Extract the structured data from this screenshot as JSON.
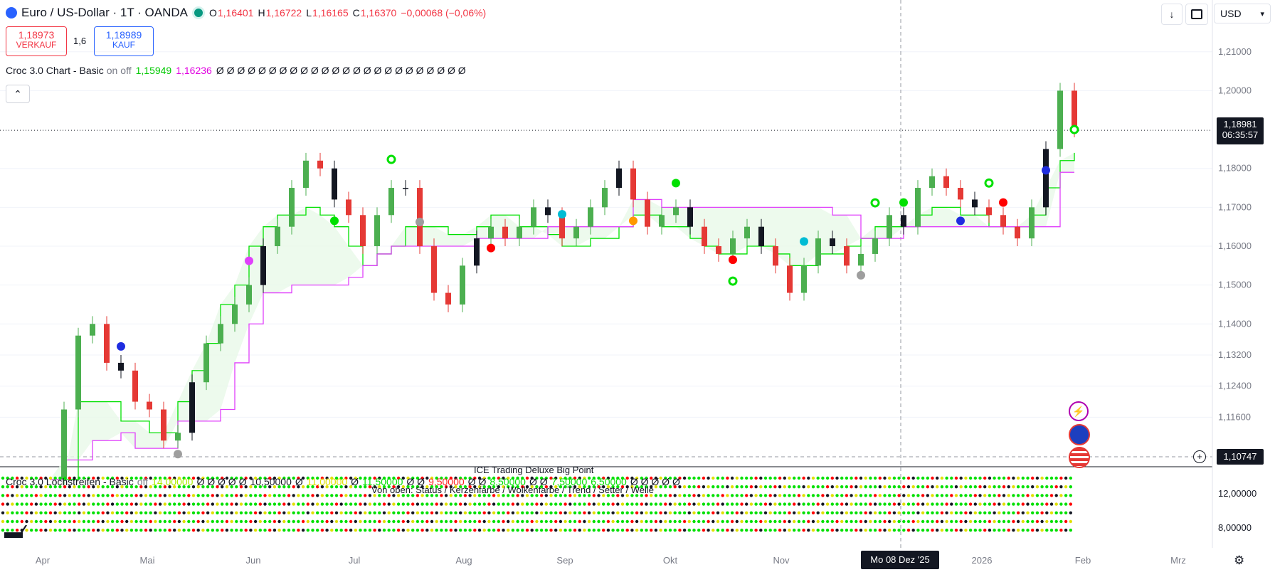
{
  "header": {
    "symbol": "Euro / US-Dollar · 1T · OANDA",
    "o_label": "O",
    "o_value": "1,16401",
    "h_label": "H",
    "h_value": "1,16722",
    "l_label": "L",
    "l_value": "1,16165",
    "c_label": "C",
    "c_value": "1,16370",
    "change": "−0,00068 (−0,06%)"
  },
  "trade": {
    "sell_price": "1,18973",
    "sell_label": "VERKAUF",
    "spread": "1,6",
    "buy_price": "1,18989",
    "buy_label": "KAUF"
  },
  "indicator1": {
    "name": "Croc 3.0 Chart - Basic",
    "param_on": "on",
    "param_off": "off",
    "value_green": "1,15949",
    "value_magenta": "1,16236",
    "zeros": "Ø Ø Ø Ø Ø Ø Ø Ø Ø Ø Ø Ø Ø Ø Ø Ø Ø Ø Ø Ø Ø Ø Ø Ø"
  },
  "collapse_icon": "chevron-up-icon",
  "toolbar": {
    "download_icon": "arrow-down-icon",
    "fullscreen_icon": "fullscreen-icon",
    "currency": "USD"
  },
  "price_tag": {
    "price": "1,18981",
    "countdown": "06:35:57"
  },
  "crosshair_tag": {
    "price": "1,10747",
    "date": "Mo 08 Dez '25"
  },
  "indicator2": {
    "name": "Croc 3.0 Lochstreifen - Basic",
    "param": "off",
    "v1": "14,00000",
    "z1": "Ø Ø Ø Ø Ø",
    "v2": "10,50000",
    "z2": "Ø",
    "v3": "11,00000",
    "z3": "Ø",
    "v4": "11,50000",
    "z4": "Ø Ø",
    "v5": "9,50000",
    "z5": "Ø Ø",
    "v6": "8,50000",
    "z6": "Ø Ø",
    "v7": "7,50000",
    "v8": "6,50000",
    "z8": "Ø Ø Ø Ø Ø",
    "title": "ICE Trading Deluxe Big Point",
    "subtitle": "Von oben: Status / Kerzenfarbe / Wolkenfarbe / Trend / Setter / Welle"
  },
  "pane2_ticks": [
    "12,00000",
    "8,00000"
  ],
  "colors": {
    "bull": "#4caf50",
    "bear": "#e53935",
    "black": "#131722",
    "cloud_green": "#00e000",
    "cloud_magenta": "#e040fb",
    "dot_cyan": "#00bcd4",
    "dot_gray": "#9e9e9e",
    "dot_blue": "#1f2de0",
    "dot_orange": "#ff9800",
    "dot_red": "#ff0000"
  },
  "chart_data": {
    "type": "candlestick",
    "ylim": [
      1.104,
      1.216
    ],
    "y_ticks": [
      "1,21000",
      "1,20000",
      "1,18000",
      "1,17000",
      "1,16000",
      "1,15000",
      "1,14000",
      "1,13200",
      "1,12400",
      "1,11600"
    ],
    "x_ticks": [
      "Apr",
      "Mai",
      "Jun",
      "Jul",
      "Aug",
      "Sep",
      "Okt",
      "Nov",
      "2026",
      "Feb",
      "Mrz"
    ],
    "series": [
      {
        "values": [
          1.1,
          1.118,
          1.137,
          1.14,
          1.13,
          1.128,
          1.12,
          1.118,
          1.11,
          1.112,
          1.125,
          1.135,
          1.14,
          1.145,
          1.15,
          1.16,
          1.165,
          1.175,
          1.182,
          1.18,
          1.172,
          1.168,
          1.16,
          1.168,
          1.175,
          1.175,
          1.16,
          1.148,
          1.145,
          1.155,
          1.162,
          1.165,
          1.162,
          1.165,
          1.17,
          1.168,
          1.162,
          1.165,
          1.17,
          1.175,
          1.18,
          1.172,
          1.165,
          1.168,
          1.17,
          1.165,
          1.16,
          1.158,
          1.162,
          1.165,
          1.16,
          1.155,
          1.148,
          1.155,
          1.162,
          1.16,
          1.155,
          1.158,
          1.162,
          1.168,
          1.165,
          1.175,
          1.178,
          1.175,
          1.172,
          1.17,
          1.168,
          1.165,
          1.162,
          1.17,
          1.185,
          1.2,
          1.19
        ]
      },
      {
        "values": [
          1.1,
          1.1,
          1.12,
          1.12,
          1.12,
          1.115,
          1.115,
          1.112,
          1.112,
          1.12,
          1.128,
          1.135,
          1.145,
          1.15,
          1.16,
          1.165,
          1.168,
          1.168,
          1.17,
          1.168,
          1.165,
          1.16,
          1.155,
          1.158,
          1.16,
          1.165,
          1.165,
          1.165,
          1.163,
          1.163,
          1.165,
          1.168,
          1.168,
          1.165,
          1.165,
          1.163,
          1.16,
          1.16,
          1.162,
          1.162,
          1.165,
          1.168,
          1.168,
          1.165,
          1.165,
          1.162,
          1.16,
          1.158,
          1.158,
          1.16,
          1.16,
          1.158,
          1.155,
          1.155,
          1.158,
          1.158,
          1.16,
          1.162,
          1.165,
          1.165,
          1.165,
          1.168,
          1.17,
          1.17,
          1.168,
          1.168,
          1.165,
          1.165,
          1.165,
          1.168,
          1.175,
          1.182,
          1.184
        ]
      },
      {
        "values": [
          1.1,
          1.105,
          1.105,
          1.11,
          1.11,
          1.112,
          1.108,
          1.108,
          1.108,
          1.115,
          1.115,
          1.115,
          1.118,
          1.13,
          1.14,
          1.148,
          1.148,
          1.15,
          1.15,
          1.15,
          1.15,
          1.152,
          1.155,
          1.158,
          1.16,
          1.16,
          1.16,
          1.16,
          1.16,
          1.16,
          1.162,
          1.162,
          1.162,
          1.162,
          1.162,
          1.165,
          1.165,
          1.165,
          1.165,
          1.165,
          1.165,
          1.172,
          1.172,
          1.17,
          1.17,
          1.17,
          1.17,
          1.17,
          1.17,
          1.17,
          1.17,
          1.17,
          1.17,
          1.17,
          1.17,
          1.168,
          1.168,
          1.162,
          1.162,
          1.162,
          1.165,
          1.165,
          1.165,
          1.165,
          1.165,
          1.165,
          1.165,
          1.165,
          1.165,
          1.165,
          1.165,
          1.179,
          1.179
        ]
      }
    ]
  }
}
